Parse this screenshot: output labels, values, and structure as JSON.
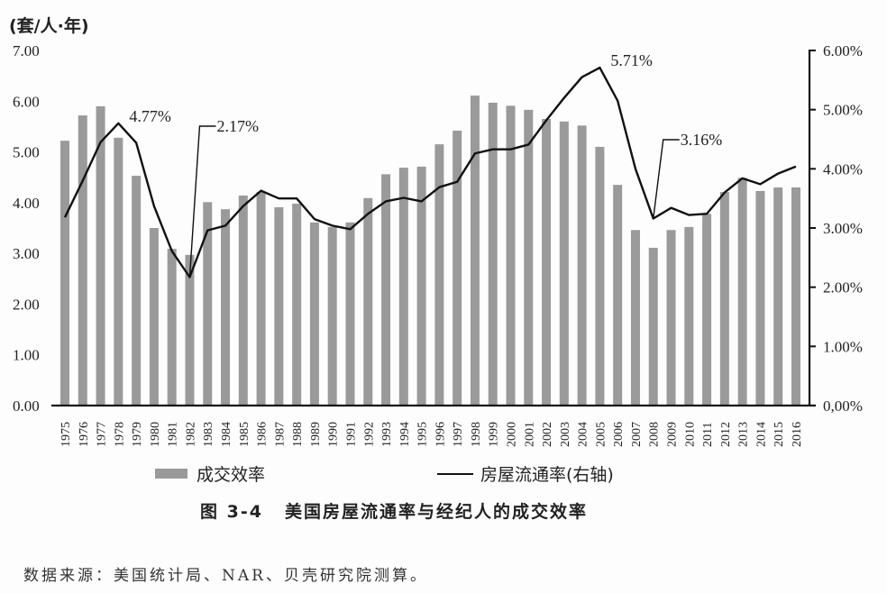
{
  "chart_data": {
    "type": "bar+line",
    "title": "美国房屋流通率与经纪人的成交效率",
    "figure_number": "图 3-4",
    "left_axis": {
      "label": "(套/人·年)",
      "range": [
        0,
        7
      ],
      "ticks": [
        "0.00",
        "1.00",
        "2.00",
        "3.00",
        "4.00",
        "5.00",
        "6.00",
        "7.00"
      ]
    },
    "right_axis": {
      "label": "房屋流通率(右轴)",
      "range": [
        0,
        6
      ],
      "ticks": [
        "0,00%",
        "1.00%",
        "2.00%",
        "3.00%",
        "4.00%",
        "5.00%",
        "6.00%"
      ]
    },
    "categories": [
      "1975",
      "1976",
      "1977",
      "1978",
      "1979",
      "1980",
      "1981",
      "1982",
      "1983",
      "1984",
      "1985",
      "1986",
      "1987",
      "1988",
      "1989",
      "1990",
      "1991",
      "1992",
      "1993",
      "1994",
      "1995",
      "1996",
      "1997",
      "1998",
      "1999",
      "2000",
      "2001",
      "2002",
      "2003",
      "2004",
      "2005",
      "2006",
      "2007",
      "2008",
      "2009",
      "2010",
      "2011",
      "2012",
      "2013",
      "2014",
      "2015",
      "2016"
    ],
    "series": [
      {
        "name": "成交效率",
        "type": "bar",
        "axis": "left",
        "color": "#9a9a9a",
        "values": [
          5.22,
          5.72,
          5.9,
          5.28,
          4.53,
          3.5,
          3.09,
          2.97,
          4.01,
          3.87,
          4.14,
          4.21,
          3.91,
          3.98,
          3.61,
          3.52,
          3.61,
          4.09,
          4.56,
          4.69,
          4.71,
          5.15,
          5.42,
          6.11,
          5.97,
          5.91,
          5.83,
          5.65,
          5.6,
          5.52,
          5.1,
          4.35,
          3.46,
          3.11,
          3.46,
          3.52,
          3.78,
          4.21,
          4.49,
          4.23,
          4.3,
          4.3
        ]
      },
      {
        "name": "房屋流通率(右轴)",
        "type": "line",
        "axis": "right",
        "unit": "%",
        "color": "#111111",
        "values": [
          3.18,
          3.8,
          4.45,
          4.77,
          4.44,
          3.37,
          2.61,
          2.17,
          2.96,
          3.04,
          3.37,
          3.63,
          3.5,
          3.5,
          3.15,
          3.04,
          2.98,
          3.24,
          3.45,
          3.51,
          3.45,
          3.69,
          3.78,
          4.26,
          4.33,
          4.33,
          4.41,
          4.82,
          5.2,
          5.55,
          5.71,
          5.15,
          4.0,
          3.16,
          3.34,
          3.22,
          3.24,
          3.6,
          3.84,
          3.74,
          3.92,
          4.04
        ]
      }
    ],
    "annotations": [
      {
        "text": "4.77%",
        "year": "1978",
        "style": "plain"
      },
      {
        "text": "2.17%",
        "year": "1982",
        "style": "leader"
      },
      {
        "text": "5.71%",
        "year": "2005",
        "style": "plain"
      },
      {
        "text": "3.16%",
        "year": "2008",
        "style": "leader"
      }
    ],
    "grid": false,
    "legend_position": "bottom"
  },
  "unit_label": "(套/人·年)",
  "legend": {
    "bar_label": "成交效率",
    "line_label": "房屋流通率(右轴)"
  },
  "caption": {
    "figure_number": "图 3-4",
    "title": "美国房屋流通率与经纪人的成交效率"
  },
  "source": "数据来源：美国统计局、NAR、贝壳研究院测算。"
}
